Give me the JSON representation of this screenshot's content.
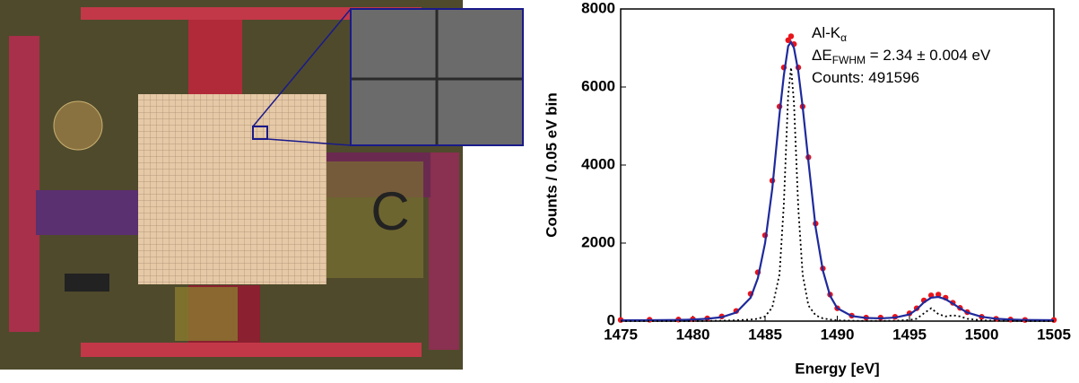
{
  "chart_data": {
    "type": "line",
    "xlabel": "Energy [eV]",
    "ylabel": "Counts / 0.05 eV bin",
    "annotations": [
      [
        {
          "text": "Al-K"
        },
        {
          "text": "α",
          "sub": true
        }
      ],
      [
        {
          "text": "ΔE"
        },
        {
          "text": "FWHM",
          "sub": true
        },
        {
          "text": " = 2.34 ± 0.004 eV"
        }
      ],
      [
        {
          "text": "Counts: 491596"
        }
      ]
    ],
    "x": [
      1475,
      1477,
      1479,
      1480,
      1481,
      1482,
      1483,
      1484,
      1484.5,
      1485,
      1485.5,
      1486,
      1486.3,
      1486.6,
      1486.8,
      1487,
      1487.3,
      1487.6,
      1488,
      1488.5,
      1489,
      1489.5,
      1490,
      1491,
      1492,
      1493,
      1494,
      1495,
      1495.5,
      1496,
      1496.5,
      1497,
      1497.5,
      1498,
      1498.5,
      1499,
      1500,
      1501,
      1502,
      1503,
      1505
    ],
    "series": [
      {
        "color": "#e8141b",
        "style": "points",
        "values": [
          30,
          35,
          40,
          50,
          70,
          120,
          260,
          700,
          1250,
          2200,
          3600,
          5500,
          6500,
          7200,
          7300,
          7100,
          6500,
          5500,
          4200,
          2500,
          1350,
          680,
          330,
          140,
          90,
          90,
          110,
          200,
          330,
          530,
          660,
          680,
          600,
          470,
          340,
          230,
          110,
          60,
          40,
          30,
          30
        ]
      },
      {
        "color": "#1f2a9c",
        "style": "line",
        "values": [
          20,
          25,
          30,
          40,
          60,
          100,
          220,
          600,
          1100,
          2000,
          3400,
          5300,
          6300,
          7050,
          7150,
          7000,
          6400,
          5500,
          4100,
          2400,
          1300,
          650,
          330,
          130,
          80,
          70,
          90,
          170,
          300,
          480,
          600,
          620,
          560,
          450,
          330,
          220,
          110,
          60,
          40,
          30,
          25
        ]
      },
      {
        "color": "#000000",
        "style": "dotted",
        "values": [
          0,
          0,
          0,
          0,
          5,
          10,
          20,
          40,
          60,
          120,
          350,
          1200,
          3000,
          5800,
          6500,
          5600,
          2900,
          1200,
          400,
          150,
          70,
          40,
          20,
          10,
          5,
          5,
          10,
          30,
          60,
          200,
          330,
          180,
          120,
          150,
          120,
          60,
          20,
          10,
          5,
          0,
          0
        ]
      }
    ],
    "xlim": [
      1475,
      1505
    ],
    "xticks": [
      1475,
      1480,
      1485,
      1490,
      1495,
      1500,
      1505
    ],
    "ylim": [
      0,
      8000
    ],
    "yticks": [
      0,
      2000,
      4000,
      6000,
      8000
    ]
  }
}
